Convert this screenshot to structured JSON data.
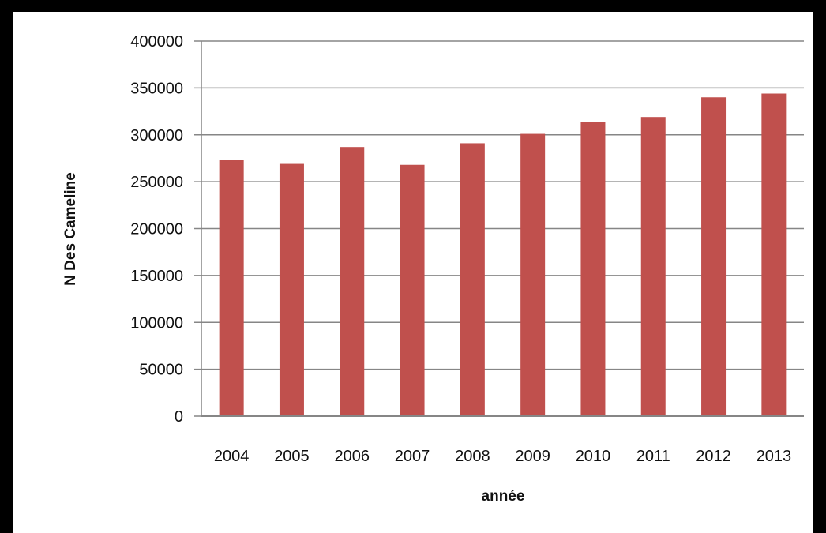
{
  "chart_data": {
    "type": "bar",
    "title": "",
    "xlabel": "année",
    "ylabel": "N Des Cameline",
    "categories": [
      "2004",
      "2005",
      "2006",
      "2007",
      "2008",
      "2009",
      "2010",
      "2011",
      "2012",
      "2013"
    ],
    "series": [
      {
        "values": [
          273000,
          269000,
          287000,
          268000,
          291000,
          301000,
          314000,
          319000,
          340000,
          344000
        ]
      }
    ],
    "ylim": [
      0,
      400000
    ],
    "yticks": [
      "0",
      "50000",
      "100000",
      "150000",
      "200000",
      "250000",
      "300000",
      "350000",
      "400000"
    ],
    "grid": true,
    "legend": "none",
    "bar_color": "#c0504d",
    "gridline_color": "#868686"
  }
}
